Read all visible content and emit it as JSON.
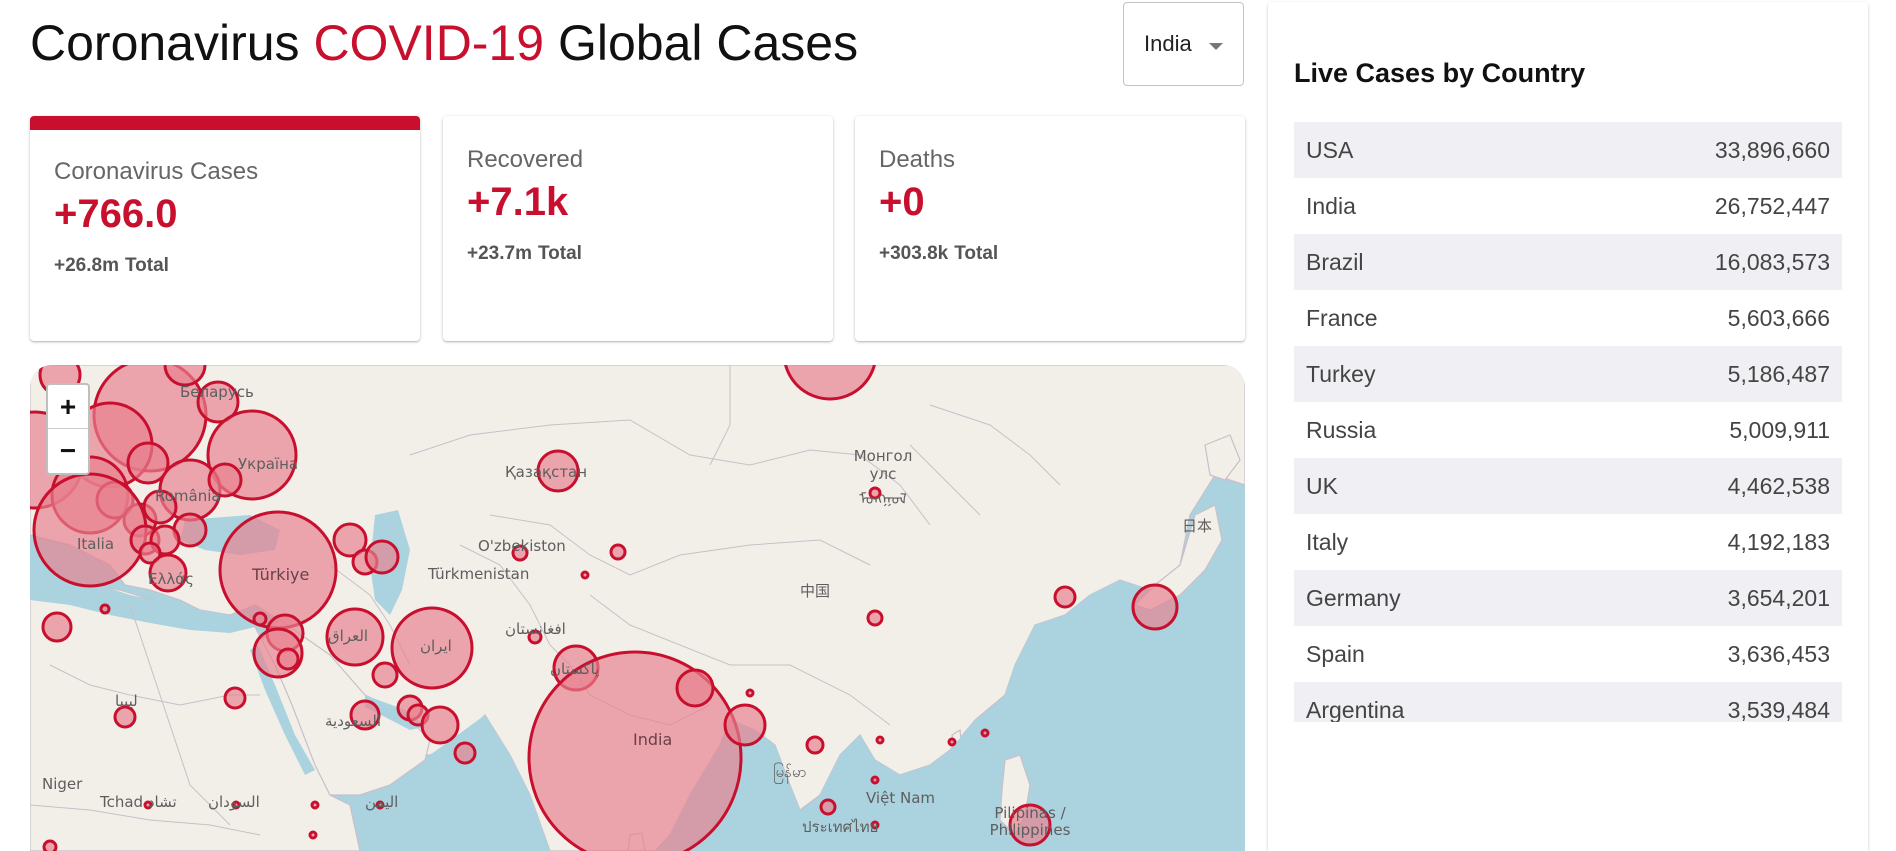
{
  "header": {
    "title_prefix": "Coronavirus ",
    "title_accent": "COVID-19",
    "title_suffix": " Global Cases"
  },
  "country_select": {
    "selected": "India"
  },
  "cards": [
    {
      "label": "Coronavirus Cases",
      "value": "+766.0",
      "total": "+26.8m",
      "total_word": "Total",
      "active": true
    },
    {
      "label": "Recovered",
      "value": "+7.1k",
      "total": "+23.7m",
      "total_word": "Total",
      "active": false
    },
    {
      "label": "Deaths",
      "value": "+0",
      "total": "+303.8k",
      "total_word": "Total",
      "active": false
    }
  ],
  "map": {
    "zoom_in": "+",
    "zoom_out": "−",
    "labels": {
      "belarus": "Беларусь",
      "ukraine": "Україна",
      "romania": "România",
      "italia": "Italia",
      "ellas": "Ελλάς",
      "turkiye": "Türkiye",
      "kazakhstan": "Қазақстан",
      "uzbekistan": "O'zbekiston",
      "turkmenistan": "Türkmenistan",
      "mongolia": "Монгол улс ᠮᠤᠩᠭᠤᠯ",
      "china": "中国",
      "japan": "日本",
      "iraq": "العراق",
      "iran": "ایران",
      "afghanistan": "افغانستان",
      "pakistan": "پاکستان",
      "india": "India",
      "libya": "ليبيا",
      "saudi": "السعودية",
      "niger": "Niger",
      "chad": "Tchad تشاد",
      "sudan": "السودان",
      "yemen": "اليمن",
      "vietnam": "Việt Nam",
      "thailand": "ประเทศไทย",
      "philippines": "Pilipinas / Philippines",
      "myanmar": "မြန်မာ"
    },
    "colors": {
      "water": "#aad3df",
      "land": "#f2efe9",
      "bubble_fill": "#e8808f",
      "bubble_stroke": "#c8102e"
    }
  },
  "live_cases": {
    "title": "Live Cases by Country",
    "rows": [
      {
        "country": "USA",
        "cases": "33,896,660"
      },
      {
        "country": "India",
        "cases": "26,752,447"
      },
      {
        "country": "Brazil",
        "cases": "16,083,573"
      },
      {
        "country": "France",
        "cases": "5,603,666"
      },
      {
        "country": "Turkey",
        "cases": "5,186,487"
      },
      {
        "country": "Russia",
        "cases": "5,009,911"
      },
      {
        "country": "UK",
        "cases": "4,462,538"
      },
      {
        "country": "Italy",
        "cases": "4,192,183"
      },
      {
        "country": "Germany",
        "cases": "3,654,201"
      },
      {
        "country": "Spain",
        "cases": "3,636,453"
      },
      {
        "country": "Argentina",
        "cases": "3,539,484"
      }
    ]
  }
}
